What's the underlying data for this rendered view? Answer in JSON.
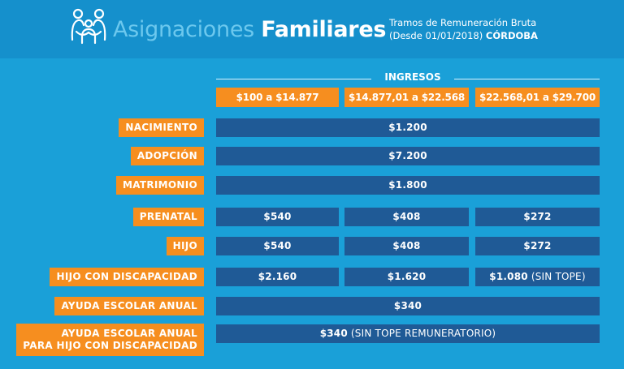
{
  "header": {
    "title_light": "Asignaciones",
    "title_bold": "Familiares",
    "subtitle_line1": "Tramos de Remuneración Bruta",
    "subtitle_line2": "(Desde 01/01/2018)",
    "province": "CÓRDOBA",
    "logo_icon": "family-icon"
  },
  "table": {
    "group_header": "INGRESOS",
    "columns": [
      "$100 a $14.877",
      "$14.877,01  a $22.568",
      "$22.568,01 a $29.700"
    ],
    "rows": [
      {
        "label": "NACIMIENTO",
        "value": "$1.200"
      },
      {
        "label": "ADOPCIÓN",
        "value": "$7.200"
      },
      {
        "label": "MATRIMONIO",
        "value": "$1.800"
      },
      {
        "label": "PRENATAL",
        "values": [
          "$540",
          "$408",
          "$272"
        ]
      },
      {
        "label": "HIJO",
        "values": [
          "$540",
          "$408",
          "$272"
        ]
      },
      {
        "label": "HIJO CON DISCAPACIDAD",
        "values": [
          "$2.160",
          "$1.620",
          "$1.080"
        ],
        "note": "(SIN TOPE)"
      },
      {
        "label": "AYUDA ESCOLAR ANUAL",
        "value": "$340"
      },
      {
        "label_line1": "AYUDA ESCOLAR ANUAL",
        "label_line2": "PARA HIJO CON DISCAPACIDAD",
        "value": "$340",
        "note": "(SIN TOPE REMUNERATORIO)"
      }
    ]
  },
  "colors": {
    "background": "#1aa0d8",
    "header": "#1590cc",
    "orange": "#f68e1f",
    "cell": "#1f5a96"
  }
}
